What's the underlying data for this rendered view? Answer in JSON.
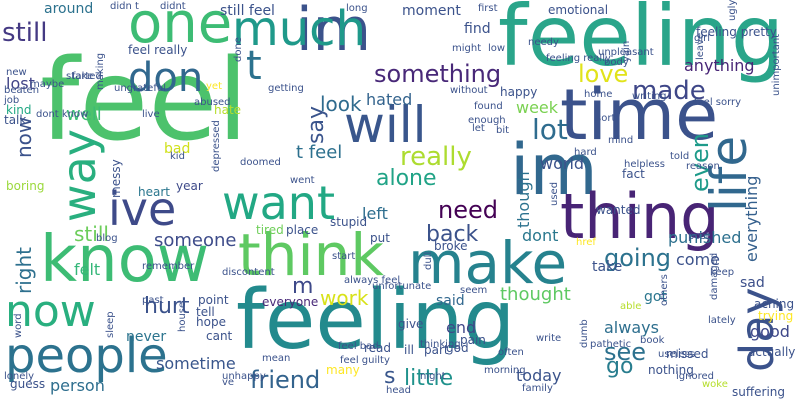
{
  "words": [
    {
      "text": "feel",
      "color": "#4cc26c"
    },
    {
      "text": "feeling",
      "color": "#2aa58a"
    },
    {
      "text": "feeling",
      "color": "#238a8d"
    },
    {
      "text": "know",
      "color": "#3dbc74"
    },
    {
      "text": "time",
      "color": "#3b528b"
    },
    {
      "text": "im",
      "color": "#3b528b"
    },
    {
      "text": "much",
      "color": "#1f998a"
    },
    {
      "text": "im",
      "color": "#31688e"
    },
    {
      "text": "one",
      "color": "#3dbc74"
    },
    {
      "text": "make",
      "color": "#26828e"
    },
    {
      "text": "think",
      "color": "#5ec962"
    },
    {
      "text": "thing",
      "color": "#482475"
    },
    {
      "text": "people",
      "color": "#2c728e"
    },
    {
      "text": "now",
      "color": "#29af7f"
    },
    {
      "text": "way",
      "color": "#29af7f"
    },
    {
      "text": "life",
      "color": "#31688e"
    },
    {
      "text": "ive",
      "color": "#3e4a89"
    },
    {
      "text": "want",
      "color": "#22a884"
    },
    {
      "text": "will",
      "color": "#39568c"
    },
    {
      "text": "day",
      "color": "#3b528b"
    },
    {
      "text": "don",
      "color": "#31688e"
    },
    {
      "text": "t",
      "color": "#2c728e"
    },
    {
      "text": "something",
      "color": "#482878"
    },
    {
      "text": "love",
      "color": "#e1e31a"
    },
    {
      "text": "made",
      "color": "#3f4788"
    },
    {
      "text": "lot",
      "color": "#2f6c8e"
    },
    {
      "text": "really",
      "color": "#addc30"
    },
    {
      "text": "alone",
      "color": "#20a386"
    },
    {
      "text": "need",
      "color": "#440154"
    },
    {
      "text": "going",
      "color": "#2c728e"
    },
    {
      "text": "even",
      "color": "#1e9b8a"
    },
    {
      "text": "back",
      "color": "#3b528b"
    },
    {
      "text": "work",
      "color": "#d8e219"
    },
    {
      "text": "friend",
      "color": "#33638d"
    },
    {
      "text": "little",
      "color": "#20928c"
    },
    {
      "text": "hurt",
      "color": "#3b528b"
    },
    {
      "text": "see",
      "color": "#2d718e"
    },
    {
      "text": "go",
      "color": "#287d8e"
    },
    {
      "text": "say",
      "color": "#3a548c"
    },
    {
      "text": "look",
      "color": "#2f6b8e"
    },
    {
      "text": "still",
      "color": "#443983"
    },
    {
      "text": "right",
      "color": "#2d708e"
    },
    {
      "text": "now",
      "color": "#3b528b"
    },
    {
      "text": "still",
      "color": "#6ccd5a"
    },
    {
      "text": "m",
      "color": "#3e4989"
    },
    {
      "text": "s",
      "color": "#39568c"
    },
    {
      "text": "thought",
      "color": "#5ec962"
    },
    {
      "text": "someone",
      "color": "#3e4c8a"
    },
    {
      "text": "left",
      "color": "#2e6e8e"
    },
    {
      "text": "t feel",
      "color": "#2d708e"
    },
    {
      "text": "well",
      "color": "#3dbc74"
    },
    {
      "text": "lost",
      "color": "#414487"
    },
    {
      "text": "punished",
      "color": "#2d708e"
    },
    {
      "text": "everything",
      "color": "#35608d"
    },
    {
      "text": "though",
      "color": "#2c728e"
    },
    {
      "text": "world",
      "color": "#3b528b"
    },
    {
      "text": "felt",
      "color": "#35b779"
    },
    {
      "text": "today",
      "color": "#3a538b"
    },
    {
      "text": "sometime",
      "color": "#39568c"
    },
    {
      "text": "person",
      "color": "#2e6e8e"
    },
    {
      "text": "always",
      "color": "#2e6f8e"
    },
    {
      "text": "good",
      "color": "#3f4889"
    },
    {
      "text": "anything",
      "color": "#482576"
    },
    {
      "text": "hated",
      "color": "#33638d"
    },
    {
      "text": "week",
      "color": "#7ad151"
    },
    {
      "text": "bad",
      "color": "#d0e11c"
    },
    {
      "text": "dont",
      "color": "#2a788e"
    },
    {
      "text": "end",
      "color": "#3f4788"
    },
    {
      "text": "said",
      "color": "#31678e"
    },
    {
      "text": "take",
      "color": "#3b528b"
    },
    {
      "text": "come",
      "color": "#3b528b"
    },
    {
      "text": "got",
      "color": "#2a768e"
    },
    {
      "text": "sad",
      "color": "#3c4f8a"
    },
    {
      "text": "never",
      "color": "#2b748e"
    },
    {
      "text": "find",
      "color": "#3b528b"
    },
    {
      "text": "around",
      "color": "#2c728e"
    },
    {
      "text": "moment",
      "color": "#3b528b"
    },
    {
      "text": "still feel",
      "color": "#3b528b"
    },
    {
      "text": "feel really",
      "color": "#3b528b"
    },
    {
      "text": "fake",
      "color": "#3b528b"
    },
    {
      "text": "talk",
      "color": "#3b528b"
    },
    {
      "text": "kind",
      "color": "#22a884"
    },
    {
      "text": "boring",
      "color": "#9bd93c"
    },
    {
      "text": "messy",
      "color": "#3b528b"
    },
    {
      "text": "heart",
      "color": "#2a768e"
    },
    {
      "text": "year",
      "color": "#3e4a89"
    },
    {
      "text": "tired",
      "color": "#6ece58"
    },
    {
      "text": "place",
      "color": "#3b528b"
    },
    {
      "text": "stupid",
      "color": "#3b528b"
    },
    {
      "text": "tell",
      "color": "#3b528b"
    },
    {
      "text": "hope",
      "color": "#3b528b"
    },
    {
      "text": "point",
      "color": "#3b528b"
    },
    {
      "text": "everyone",
      "color": "#482878"
    },
    {
      "text": "cant",
      "color": "#3b528b"
    },
    {
      "text": "give",
      "color": "#3b528b"
    },
    {
      "text": "pain",
      "color": "#3b528b"
    },
    {
      "text": "part",
      "color": "#3b528b"
    },
    {
      "text": "ill",
      "color": "#3b528b"
    },
    {
      "text": "read",
      "color": "#3b528b"
    },
    {
      "text": "many",
      "color": "#fde725"
    },
    {
      "text": "guess",
      "color": "#3b528b"
    },
    {
      "text": "emotional",
      "color": "#3b528b"
    },
    {
      "text": "feeling pretty",
      "color": "#3b528b"
    },
    {
      "text": "leave",
      "color": "#3b528b"
    },
    {
      "text": "home",
      "color": "#3b528b"
    },
    {
      "text": "fact",
      "color": "#3b528b"
    },
    {
      "text": "wanted",
      "color": "#3b528b"
    },
    {
      "text": "post",
      "color": "#3b528b"
    },
    {
      "text": "keep",
      "color": "#3b528b"
    },
    {
      "text": "aching",
      "color": "#3b528b"
    },
    {
      "text": "trying",
      "color": "#fde725"
    },
    {
      "text": "actually",
      "color": "#3b528b"
    },
    {
      "text": "missed",
      "color": "#3b528b"
    },
    {
      "text": "nothing",
      "color": "#3b528b"
    },
    {
      "text": "suffering",
      "color": "#3b528b"
    },
    {
      "text": "family",
      "color": "#3b528b"
    },
    {
      "text": "woke",
      "color": "#b5de2b"
    },
    {
      "text": "able",
      "color": "#b5de2b"
    },
    {
      "text": "happy",
      "color": "#3b528b"
    },
    {
      "text": "without",
      "color": "#3b528b"
    },
    {
      "text": "let",
      "color": "#3b528b"
    },
    {
      "text": "god",
      "color": "#3b528b"
    },
    {
      "text": "broke",
      "color": "#3b528b"
    },
    {
      "text": "put",
      "color": "#3b528b"
    },
    {
      "text": "start",
      "color": "#3b528b"
    },
    {
      "text": "live",
      "color": "#3b528b"
    },
    {
      "text": "getting",
      "color": "#3b528b"
    },
    {
      "text": "hate",
      "color": "#b5de2b"
    },
    {
      "text": "making",
      "color": "#3b528b"
    },
    {
      "text": "started",
      "color": "#3b528b"
    },
    {
      "text": "new",
      "color": "#3b528b"
    },
    {
      "text": "didn t",
      "color": "#3b528b"
    },
    {
      "text": "didnt",
      "color": "#3b528b"
    },
    {
      "text": "might",
      "color": "#3b528b"
    },
    {
      "text": "long",
      "color": "#3b528b"
    },
    {
      "text": "blog",
      "color": "#3b528b"
    },
    {
      "text": "href",
      "color": "#fde725"
    },
    {
      "text": "dont know",
      "color": "#3b528b"
    },
    {
      "text": "depressed",
      "color": "#3b528b"
    },
    {
      "text": "used",
      "color": "#3b528b"
    },
    {
      "text": "mean",
      "color": "#3b528b"
    },
    {
      "text": "yet",
      "color": "#fde725"
    },
    {
      "text": "bit",
      "color": "#3b528b"
    },
    {
      "text": "yain",
      "color": "#3b528b"
    },
    {
      "text": "word",
      "color": "#3b528b"
    },
    {
      "text": "sleep",
      "color": "#3b528b"
    },
    {
      "text": "unhappy",
      "color": "#3b528b"
    },
    {
      "text": "often",
      "color": "#3b528b"
    },
    {
      "text": "ugly",
      "color": "#3b528b"
    },
    {
      "text": "house",
      "color": "#3b528b"
    },
    {
      "text": "feel guilty",
      "color": "#3b528b"
    },
    {
      "text": "always feel",
      "color": "#3b528b"
    },
    {
      "text": "unfortunate",
      "color": "#3b528b"
    },
    {
      "text": "lonely",
      "color": "#3b528b"
    },
    {
      "text": "damaged",
      "color": "#3b528b"
    },
    {
      "text": "dumb",
      "color": "#3b528b"
    },
    {
      "text": "pathetic",
      "color": "#3b528b"
    },
    {
      "text": "others",
      "color": "#3b528b"
    },
    {
      "text": "lately",
      "color": "#3b528b"
    },
    {
      "text": "ignored",
      "color": "#3b528b"
    },
    {
      "text": "useless",
      "color": "#3b528b"
    },
    {
      "text": "unimportant",
      "color": "#3b528b"
    },
    {
      "text": "unpleasant",
      "color": "#3b528b"
    },
    {
      "text": "reason",
      "color": "#3b528b"
    },
    {
      "text": "hard",
      "color": "#3b528b"
    },
    {
      "text": "feel sorry",
      "color": "#3b528b"
    },
    {
      "text": "mind",
      "color": "#3b528b"
    },
    {
      "text": "told",
      "color": "#3b528b"
    },
    {
      "text": "helpless",
      "color": "#3b528b"
    },
    {
      "text": "writing",
      "color": "#3b528b"
    },
    {
      "text": "abused",
      "color": "#3b528b"
    },
    {
      "text": "ungrateful",
      "color": "#3b528b"
    },
    {
      "text": "beaten",
      "color": "#3b528b"
    },
    {
      "text": "job",
      "color": "#3b528b"
    },
    {
      "text": "maybe",
      "color": "#3b528b"
    },
    {
      "text": "kid",
      "color": "#3b528b"
    },
    {
      "text": "doomed",
      "color": "#3b528b"
    },
    {
      "text": "went",
      "color": "#3b528b"
    },
    {
      "text": "remember",
      "color": "#3b528b"
    },
    {
      "text": "past",
      "color": "#3b528b"
    },
    {
      "text": "ve",
      "color": "#3b528b"
    },
    {
      "text": "discontent",
      "color": "#3b528b"
    },
    {
      "text": "morning",
      "color": "#3b528b"
    },
    {
      "text": "thinking",
      "color": "#3b528b"
    },
    {
      "text": "feel bad",
      "color": "#3b528b"
    },
    {
      "text": "write",
      "color": "#3b528b"
    },
    {
      "text": "head",
      "color": "#3b528b"
    },
    {
      "text": "night",
      "color": "#3b528b"
    },
    {
      "text": "seem",
      "color": "#3b528b"
    },
    {
      "text": "dull",
      "color": "#3b528b"
    },
    {
      "text": "book",
      "color": "#3b528b"
    },
    {
      "text": "first",
      "color": "#3b528b"
    },
    {
      "text": "low",
      "color": "#3b528b"
    },
    {
      "text": "needy",
      "color": "#3b528b"
    },
    {
      "text": "feeling really",
      "color": "#3b528b"
    },
    {
      "text": "body",
      "color": "#3b528b"
    },
    {
      "text": "girl",
      "color": "#3b528b"
    },
    {
      "text": "done",
      "color": "#3b528b"
    },
    {
      "text": "found",
      "color": "#3b528b"
    },
    {
      "text": "enough",
      "color": "#3b528b"
    },
    {
      "text": "sort",
      "color": "#3b528b"
    }
  ]
}
